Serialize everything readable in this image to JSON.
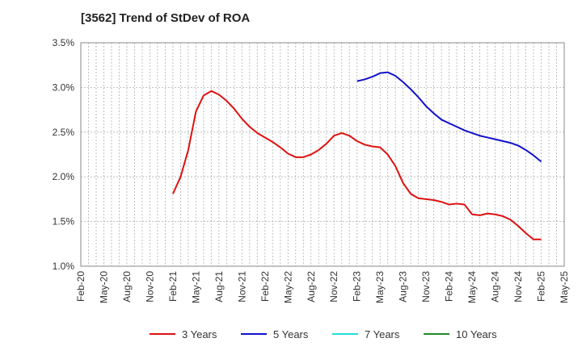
{
  "chart_data": {
    "type": "line",
    "title": "[3562]  Trend of StDev of ROA",
    "xlabel": "",
    "ylabel": "",
    "x_ticks": [
      "Feb-20",
      "May-20",
      "Aug-20",
      "Nov-20",
      "Feb-21",
      "May-21",
      "Aug-21",
      "Nov-21",
      "Feb-22",
      "May-22",
      "Aug-22",
      "Nov-22",
      "Feb-23",
      "May-23",
      "Aug-23",
      "Nov-23",
      "Feb-24",
      "May-24",
      "Aug-24",
      "Nov-24",
      "Feb-25",
      "May-25"
    ],
    "y_ticks": [
      "1.0%",
      "1.5%",
      "2.0%",
      "2.5%",
      "3.0%",
      "3.5%"
    ],
    "ylim": [
      1.0,
      3.5
    ],
    "xlim": [
      "2020-02",
      "2025-05"
    ],
    "grid": true,
    "legend_position": "bottom",
    "series": [
      {
        "name": "3 Years",
        "color": "#dd1111",
        "points": [
          [
            "2021-02",
            1.81
          ],
          [
            "2021-03",
            2.0
          ],
          [
            "2021-04",
            2.3
          ],
          [
            "2021-05",
            2.73
          ],
          [
            "2021-06",
            2.91
          ],
          [
            "2021-07",
            2.96
          ],
          [
            "2021-08",
            2.92
          ],
          [
            "2021-09",
            2.85
          ],
          [
            "2021-10",
            2.76
          ],
          [
            "2021-11",
            2.65
          ],
          [
            "2021-12",
            2.56
          ],
          [
            "2022-01",
            2.49
          ],
          [
            "2022-02",
            2.44
          ],
          [
            "2022-03",
            2.39
          ],
          [
            "2022-04",
            2.33
          ],
          [
            "2022-05",
            2.26
          ],
          [
            "2022-06",
            2.22
          ],
          [
            "2022-07",
            2.22
          ],
          [
            "2022-08",
            2.25
          ],
          [
            "2022-09",
            2.3
          ],
          [
            "2022-10",
            2.37
          ],
          [
            "2022-11",
            2.46
          ],
          [
            "2022-12",
            2.49
          ],
          [
            "2023-01",
            2.46
          ],
          [
            "2023-02",
            2.4
          ],
          [
            "2023-03",
            2.36
          ],
          [
            "2023-04",
            2.34
          ],
          [
            "2023-05",
            2.33
          ],
          [
            "2023-06",
            2.25
          ],
          [
            "2023-07",
            2.12
          ],
          [
            "2023-08",
            1.93
          ],
          [
            "2023-09",
            1.81
          ],
          [
            "2023-10",
            1.76
          ],
          [
            "2023-11",
            1.75
          ],
          [
            "2023-12",
            1.74
          ],
          [
            "2024-01",
            1.72
          ],
          [
            "2024-02",
            1.69
          ],
          [
            "2024-03",
            1.7
          ],
          [
            "2024-04",
            1.69
          ],
          [
            "2024-05",
            1.58
          ],
          [
            "2024-06",
            1.57
          ],
          [
            "2024-07",
            1.59
          ],
          [
            "2024-08",
            1.58
          ],
          [
            "2024-09",
            1.56
          ],
          [
            "2024-10",
            1.52
          ],
          [
            "2024-11",
            1.45
          ],
          [
            "2024-12",
            1.37
          ],
          [
            "2025-01",
            1.3
          ],
          [
            "2025-02",
            1.3
          ]
        ]
      },
      {
        "name": "5 Years",
        "color": "#1111cc",
        "points": [
          [
            "2023-02",
            3.07
          ],
          [
            "2023-03",
            3.09
          ],
          [
            "2023-04",
            3.12
          ],
          [
            "2023-05",
            3.16
          ],
          [
            "2023-06",
            3.17
          ],
          [
            "2023-07",
            3.13
          ],
          [
            "2023-08",
            3.06
          ],
          [
            "2023-09",
            2.98
          ],
          [
            "2023-10",
            2.89
          ],
          [
            "2023-11",
            2.79
          ],
          [
            "2023-12",
            2.71
          ],
          [
            "2024-01",
            2.64
          ],
          [
            "2024-02",
            2.6
          ],
          [
            "2024-03",
            2.56
          ],
          [
            "2024-04",
            2.52
          ],
          [
            "2024-05",
            2.49
          ],
          [
            "2024-06",
            2.46
          ],
          [
            "2024-07",
            2.44
          ],
          [
            "2024-08",
            2.42
          ],
          [
            "2024-09",
            2.4
          ],
          [
            "2024-10",
            2.38
          ],
          [
            "2024-11",
            2.35
          ],
          [
            "2024-12",
            2.3
          ],
          [
            "2025-01",
            2.24
          ],
          [
            "2025-02",
            2.17
          ]
        ]
      },
      {
        "name": "7 Years",
        "color": "#22dddd",
        "points": []
      },
      {
        "name": "10 Years",
        "color": "#228822",
        "points": []
      }
    ]
  }
}
